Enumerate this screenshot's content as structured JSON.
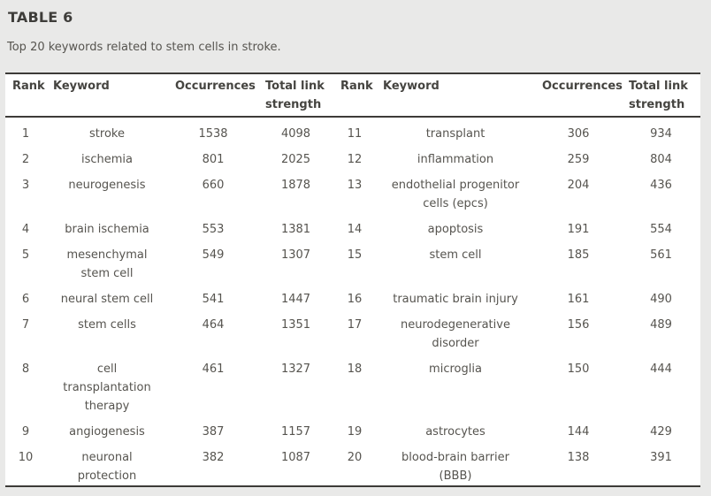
{
  "page": {
    "title": "TABLE 6",
    "caption": "Top 20 keywords related to stem cells in stroke."
  },
  "colors": {
    "page_bg": "#e9e9e8",
    "card_bg": "#ffffff",
    "border": "#3d3b38",
    "title": "#3e3d3a",
    "header_text": "#454440",
    "text": "#56544f"
  },
  "table": {
    "columns": [
      "Rank",
      "Keyword",
      "Occurrences",
      "Total link\nstrength",
      "Rank",
      "Keyword",
      "Occurrences",
      "Total link\nstrength"
    ],
    "rows": [
      {
        "left": {
          "rank": "1",
          "keyword": "stroke",
          "occurrences": "1538",
          "total_link_strength": "4098"
        },
        "right": {
          "rank": "11",
          "keyword": "transplant",
          "occurrences": "306",
          "total_link_strength": "934"
        }
      },
      {
        "left": {
          "rank": "2",
          "keyword": "ischemia",
          "occurrences": "801",
          "total_link_strength": "2025"
        },
        "right": {
          "rank": "12",
          "keyword": "inflammation",
          "occurrences": "259",
          "total_link_strength": "804"
        }
      },
      {
        "left": {
          "rank": "3",
          "keyword": "neurogenesis",
          "occurrences": "660",
          "total_link_strength": "1878"
        },
        "right": {
          "rank": "13",
          "keyword": "endothelial progenitor\ncells (epcs)",
          "occurrences": "204",
          "total_link_strength": "436"
        }
      },
      {
        "left": {
          "rank": "4",
          "keyword": "brain ischemia",
          "occurrences": "553",
          "total_link_strength": "1381"
        },
        "right": {
          "rank": "14",
          "keyword": "apoptosis",
          "occurrences": "191",
          "total_link_strength": "554"
        }
      },
      {
        "left": {
          "rank": "5",
          "keyword": "mesenchymal\nstem cell",
          "occurrences": "549",
          "total_link_strength": "1307"
        },
        "right": {
          "rank": "15",
          "keyword": "stem cell",
          "occurrences": "185",
          "total_link_strength": "561"
        }
      },
      {
        "left": {
          "rank": "6",
          "keyword": "neural stem cell",
          "occurrences": "541",
          "total_link_strength": "1447"
        },
        "right": {
          "rank": "16",
          "keyword": "traumatic brain injury",
          "occurrences": "161",
          "total_link_strength": "490"
        }
      },
      {
        "left": {
          "rank": "7",
          "keyword": "stem cells",
          "occurrences": "464",
          "total_link_strength": "1351"
        },
        "right": {
          "rank": "17",
          "keyword": "neurodegenerative\ndisorder",
          "occurrences": "156",
          "total_link_strength": "489"
        }
      },
      {
        "left": {
          "rank": "8",
          "keyword": "cell\ntransplantation\ntherapy",
          "occurrences": "461",
          "total_link_strength": "1327"
        },
        "right": {
          "rank": "18",
          "keyword": "microglia",
          "occurrences": "150",
          "total_link_strength": "444"
        }
      },
      {
        "left": {
          "rank": "9",
          "keyword": "angiogenesis",
          "occurrences": "387",
          "total_link_strength": "1157"
        },
        "right": {
          "rank": "19",
          "keyword": "astrocytes",
          "occurrences": "144",
          "total_link_strength": "429"
        }
      },
      {
        "left": {
          "rank": "10",
          "keyword": "neuronal\nprotection",
          "occurrences": "382",
          "total_link_strength": "1087"
        },
        "right": {
          "rank": "20",
          "keyword": "blood-brain barrier\n(BBB)",
          "occurrences": "138",
          "total_link_strength": "391"
        }
      }
    ]
  }
}
